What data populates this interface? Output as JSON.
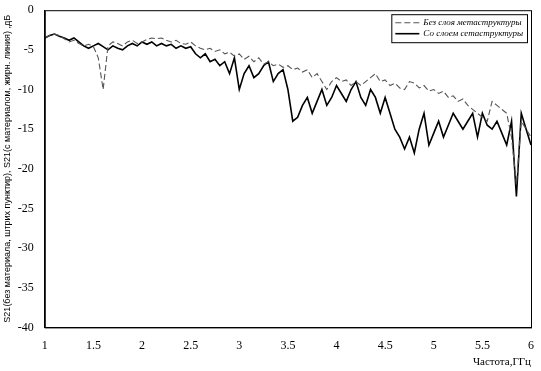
{
  "chart_data": {
    "type": "line",
    "x_label": "Частота,ГГц",
    "y_label": "S21(без материала, штрих пунктир), S21(с материалом, жирн. линия) ,дБ",
    "x": [
      1.0,
      1.05,
      1.1,
      1.15,
      1.2,
      1.25,
      1.3,
      1.35,
      1.4,
      1.45,
      1.5,
      1.55,
      1.6,
      1.65,
      1.7,
      1.75,
      1.8,
      1.85,
      1.9,
      1.95,
      2.0,
      2.05,
      2.1,
      2.15,
      2.2,
      2.25,
      2.3,
      2.35,
      2.4,
      2.45,
      2.5,
      2.55,
      2.6,
      2.65,
      2.7,
      2.75,
      2.8,
      2.85,
      2.9,
      2.95,
      3.0,
      3.05,
      3.1,
      3.15,
      3.2,
      3.25,
      3.3,
      3.35,
      3.4,
      3.45,
      3.5,
      3.55,
      3.6,
      3.65,
      3.7,
      3.75,
      3.8,
      3.85,
      3.9,
      3.95,
      4.0,
      4.05,
      4.1,
      4.15,
      4.2,
      4.25,
      4.3,
      4.35,
      4.4,
      4.45,
      4.5,
      4.55,
      4.6,
      4.65,
      4.7,
      4.75,
      4.8,
      4.85,
      4.9,
      4.95,
      5.0,
      5.05,
      5.1,
      5.15,
      5.2,
      5.25,
      5.3,
      5.35,
      5.4,
      5.45,
      5.5,
      5.55,
      5.6,
      5.65,
      5.7,
      5.75,
      5.8,
      5.85,
      5.9,
      5.95,
      6.0
    ],
    "series": [
      {
        "name": "Без слоя метаструктуры",
        "color": "#555555",
        "line_style": "dashed",
        "values": [
          -3.5,
          -3.2,
          -3.0,
          -3.2,
          -3.6,
          -4.0,
          -3.8,
          -4.2,
          -4.5,
          -4.3,
          -4.6,
          -6.0,
          -10.0,
          -4.5,
          -4.0,
          -4.2,
          -4.5,
          -4.0,
          -3.8,
          -4.2,
          -4.0,
          -3.7,
          -3.5,
          -3.6,
          -3.5,
          -3.8,
          -4.0,
          -3.8,
          -4.2,
          -4.3,
          -4.0,
          -4.5,
          -4.8,
          -5.0,
          -4.8,
          -5.2,
          -5.0,
          -5.5,
          -5.3,
          -5.8,
          -5.5,
          -6.2,
          -5.8,
          -6.5,
          -6.0,
          -6.8,
          -6.5,
          -7.0,
          -6.8,
          -7.2,
          -7.0,
          -7.5,
          -7.3,
          -7.8,
          -7.5,
          -8.5,
          -8.0,
          -9.0,
          -10.0,
          -9.0,
          -8.5,
          -9.0,
          -8.8,
          -9.5,
          -9.0,
          -9.5,
          -9.0,
          -8.5,
          -8.0,
          -9.0,
          -8.8,
          -9.5,
          -9.2,
          -9.8,
          -10.0,
          -9.0,
          -9.2,
          -9.8,
          -9.5,
          -10.2,
          -10.0,
          -10.5,
          -10.2,
          -11.0,
          -10.8,
          -11.5,
          -11.2,
          -12.0,
          -12.5,
          -13.0,
          -13.5,
          -14.0,
          -11.5,
          -12.0,
          -12.5,
          -13.0,
          -16.0,
          -22.0,
          -14.0,
          -15.0,
          -16.0
        ]
      },
      {
        "name": "Со слоем сетаструктуры",
        "color": "#000000",
        "line_style": "solid",
        "values": [
          -3.5,
          -3.2,
          -3.0,
          -3.3,
          -3.5,
          -3.8,
          -3.5,
          -4.0,
          -4.5,
          -4.8,
          -4.5,
          -4.2,
          -4.6,
          -5.0,
          -4.5,
          -4.8,
          -5.0,
          -4.5,
          -4.2,
          -4.5,
          -4.0,
          -4.3,
          -4.0,
          -4.5,
          -4.2,
          -4.5,
          -4.3,
          -4.8,
          -4.5,
          -4.8,
          -4.6,
          -5.5,
          -6.0,
          -5.5,
          -6.5,
          -6.2,
          -7.0,
          -6.5,
          -8.0,
          -6.0,
          -10.0,
          -8.0,
          -7.0,
          -8.5,
          -8.0,
          -7.0,
          -6.5,
          -9.0,
          -8.0,
          -7.5,
          -10.0,
          -14.0,
          -13.5,
          -12.0,
          -11.0,
          -13.0,
          -11.5,
          -10.0,
          -12.0,
          -11.0,
          -9.5,
          -10.5,
          -11.5,
          -10.0,
          -9.0,
          -11.0,
          -12.0,
          -10.0,
          -11.0,
          -13.0,
          -11.0,
          -13.0,
          -15.0,
          -16.0,
          -17.5,
          -16.0,
          -18.0,
          -15.0,
          -13.0,
          -17.0,
          -15.5,
          -14.0,
          -16.0,
          -14.5,
          -13.0,
          -14.0,
          -15.0,
          -14.0,
          -13.0,
          -16.0,
          -13.0,
          -14.5,
          -15.0,
          -14.0,
          -15.5,
          -17.0,
          -14.0,
          -23.5,
          -13.0,
          -15.0,
          -17.0
        ]
      }
    ],
    "xlim": [
      1,
      6
    ],
    "ylim": [
      -40,
      0
    ],
    "xticks": [
      1,
      1.5,
      2,
      2.5,
      3,
      3.5,
      4,
      4.5,
      5,
      5.5,
      6
    ],
    "yticks": [
      -40,
      -35,
      -30,
      -25,
      -20,
      -15,
      -10,
      -5,
      0
    ],
    "grid": false,
    "legend": "upper right"
  }
}
